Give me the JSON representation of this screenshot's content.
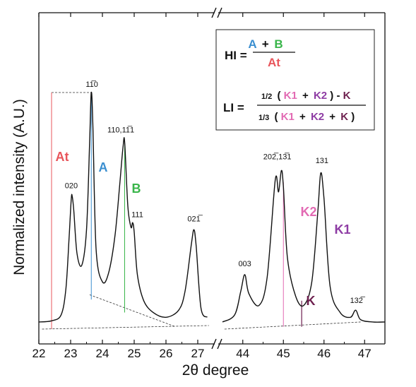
{
  "chart_data": {
    "type": "line",
    "title": "",
    "xlabel": "2θ degree",
    "ylabel": "Normalized intensity (A.U.)",
    "broken_x_axis": true,
    "left_panel": {
      "xlim": [
        22,
        27.4
      ],
      "ticks": [
        "22",
        "23",
        "24",
        "25",
        "26",
        "27"
      ],
      "series": {
        "x": [
          22.0,
          22.4,
          22.7,
          22.85,
          22.95,
          23.02,
          23.05,
          23.1,
          23.2,
          23.35,
          23.5,
          23.6,
          23.65,
          23.7,
          23.8,
          24.0,
          24.2,
          24.4,
          24.55,
          24.65,
          24.7,
          24.8,
          24.9,
          24.95,
          25.0,
          25.1,
          25.3,
          25.6,
          26.0,
          26.4,
          26.6,
          26.8,
          26.88,
          26.95,
          27.1,
          27.3
        ],
        "y": [
          0.03,
          0.035,
          0.06,
          0.17,
          0.38,
          0.55,
          0.56,
          0.5,
          0.32,
          0.27,
          0.42,
          0.8,
          1.0,
          0.86,
          0.34,
          0.2,
          0.24,
          0.4,
          0.62,
          0.77,
          0.79,
          0.52,
          0.43,
          0.45,
          0.41,
          0.23,
          0.12,
          0.07,
          0.05,
          0.08,
          0.16,
          0.36,
          0.42,
          0.35,
          0.09,
          0.05
        ]
      }
    },
    "right_panel": {
      "xlim": [
        43.5,
        47.5
      ],
      "ticks": [
        "44",
        "45",
        "46",
        "47"
      ],
      "series": {
        "x": [
          43.5,
          43.8,
          43.95,
          44.05,
          44.15,
          44.4,
          44.6,
          44.8,
          44.88,
          44.95,
          45.0,
          45.1,
          45.3,
          45.5,
          45.7,
          45.85,
          45.92,
          46.0,
          46.15,
          46.4,
          46.65,
          46.78,
          46.9,
          47.2,
          47.5
        ],
        "y": [
          0.03,
          0.06,
          0.16,
          0.23,
          0.15,
          0.1,
          0.22,
          0.63,
          0.58,
          0.67,
          0.6,
          0.3,
          0.14,
          0.1,
          0.2,
          0.5,
          0.66,
          0.55,
          0.18,
          0.07,
          0.05,
          0.08,
          0.04,
          0.03,
          0.03
        ]
      }
    },
    "peak_labels": [
      {
        "text": "020",
        "x": 23.05
      },
      {
        "text": "11̅0",
        "x": 23.65
      },
      {
        "text": "110,11̅1",
        "x": 24.7
      },
      {
        "text": "111",
        "x": 24.95
      },
      {
        "text": "021̅",
        "x": 26.88
      },
      {
        "text": "003",
        "x": 44.05
      },
      {
        "text": "202̅,13̅1",
        "x": 44.95
      },
      {
        "text": "131",
        "x": 45.92
      },
      {
        "text": "132̅",
        "x": 46.78
      }
    ],
    "region_labels": [
      {
        "text": "At",
        "color": "#e8555b"
      },
      {
        "text": "A",
        "color": "#3b8fd0"
      },
      {
        "text": "B",
        "color": "#39b54a"
      },
      {
        "text": "K2",
        "color": "#e26ab3"
      },
      {
        "text": "K1",
        "color": "#8e3ca4"
      },
      {
        "text": "K",
        "color": "#6d1f4e"
      }
    ],
    "formula_box": {
      "hi": {
        "lhs": "HI =",
        "A": "A",
        "plus": "+",
        "B": "B",
        "At": "At"
      },
      "li": {
        "lhs": "LI =",
        "num_prefix": "1/2",
        "open": "(",
        "K1": "K1",
        "plus1": "+",
        "K2": "K2",
        "close_minus": ") - ",
        "K": "K",
        "den_prefix": "1/3",
        "den_open": "(",
        "den_K1": "K1",
        "den_plus1": "+",
        "den_K2": "K2",
        "den_plus2": "+",
        "den_K": "K",
        "den_close": ")"
      }
    },
    "colors": {
      "At": "#e8555b",
      "A": "#3b8fd0",
      "B": "#39b54a",
      "K1": "#8e3ca4",
      "K2": "#e26ab3",
      "K": "#6d1f4e",
      "line": "#111111"
    },
    "grid": false,
    "legend": "none"
  }
}
